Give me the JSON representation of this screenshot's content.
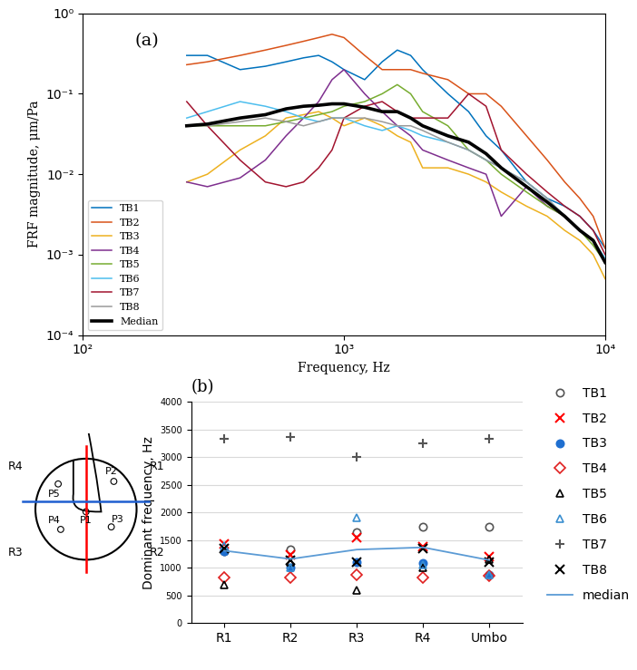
{
  "chart_data": [
    {
      "type": "line",
      "annotations": [
        "(a)"
      ],
      "x_label": "Frequency, Hz",
      "y_label": "FRF magnitude, μm/Pa",
      "log": true,
      "grid": false,
      "legend": "lower left",
      "x": [
        250,
        300,
        400,
        500,
        600,
        700,
        800,
        900,
        1000,
        1200,
        1400,
        1600,
        1800,
        2000,
        2500,
        3000,
        3500,
        4000,
        5000,
        6000,
        7000,
        8000,
        9000,
        10000
      ],
      "xlim": [
        100,
        10000
      ],
      "xticks": [
        {
          "value": 100,
          "label": "10²"
        },
        {
          "value": 1000,
          "label": "10³"
        },
        {
          "value": 10000,
          "label": "10⁴"
        }
      ],
      "ylim": [
        0.0001,
        1
      ],
      "yticks": [
        {
          "value": 0.0001,
          "label": "10⁻⁴"
        },
        {
          "value": 0.001,
          "label": "10⁻³"
        },
        {
          "value": 0.01,
          "label": "10⁻²"
        },
        {
          "value": 0.1,
          "label": "10⁻¹"
        },
        {
          "value": 1,
          "label": "10⁰"
        }
      ],
      "series": [
        {
          "name": "TB1",
          "color": "#0072BD",
          "line_style": "solid",
          "values": [
            0.3,
            0.3,
            0.2,
            0.22,
            0.25,
            0.28,
            0.3,
            0.25,
            0.2,
            0.15,
            0.25,
            0.35,
            0.3,
            0.2,
            0.1,
            0.06,
            0.03,
            0.02,
            0.008,
            0.005,
            0.004,
            0.003,
            0.002,
            0.0012
          ]
        },
        {
          "name": "TB2",
          "color": "#D95319",
          "line_style": "solid",
          "values": [
            0.23,
            0.25,
            0.3,
            0.35,
            0.4,
            0.45,
            0.5,
            0.55,
            0.5,
            0.3,
            0.2,
            0.2,
            0.2,
            0.18,
            0.15,
            0.1,
            0.1,
            0.07,
            0.03,
            0.015,
            0.008,
            0.005,
            0.003,
            0.0012
          ]
        },
        {
          "name": "TB3",
          "color": "#EDB120",
          "line_style": "solid",
          "values": [
            0.008,
            0.01,
            0.02,
            0.03,
            0.05,
            0.055,
            0.06,
            0.05,
            0.04,
            0.05,
            0.04,
            0.03,
            0.025,
            0.012,
            0.012,
            0.01,
            0.008,
            0.006,
            0.004,
            0.003,
            0.002,
            0.0015,
            0.001,
            0.0005
          ]
        },
        {
          "name": "TB4",
          "color": "#7E2F8E",
          "line_style": "solid",
          "values": [
            0.008,
            0.007,
            0.009,
            0.015,
            0.03,
            0.05,
            0.08,
            0.15,
            0.2,
            0.1,
            0.06,
            0.04,
            0.03,
            0.02,
            0.015,
            0.012,
            0.01,
            0.003,
            0.007,
            0.004,
            0.003,
            0.002,
            0.0015,
            0.0008
          ]
        },
        {
          "name": "TB5",
          "color": "#77AC30",
          "line_style": "solid",
          "values": [
            0.04,
            0.04,
            0.04,
            0.04,
            0.045,
            0.05,
            0.055,
            0.06,
            0.07,
            0.08,
            0.1,
            0.13,
            0.1,
            0.06,
            0.04,
            0.02,
            0.015,
            0.01,
            0.006,
            0.004,
            0.003,
            0.002,
            0.0013,
            0.0008
          ]
        },
        {
          "name": "TB6",
          "color": "#4DBEEE",
          "line_style": "solid",
          "values": [
            0.05,
            0.06,
            0.08,
            0.07,
            0.06,
            0.05,
            0.045,
            0.05,
            0.05,
            0.04,
            0.035,
            0.04,
            0.035,
            0.03,
            0.025,
            0.02,
            0.015,
            0.012,
            0.008,
            0.005,
            0.003,
            0.002,
            0.0015,
            0.0009
          ]
        },
        {
          "name": "TB7",
          "color": "#A2142F",
          "line_style": "solid",
          "values": [
            0.08,
            0.04,
            0.015,
            0.008,
            0.007,
            0.008,
            0.012,
            0.02,
            0.05,
            0.07,
            0.08,
            0.06,
            0.05,
            0.05,
            0.05,
            0.1,
            0.07,
            0.02,
            0.01,
            0.006,
            0.004,
            0.003,
            0.002,
            0.001
          ]
        },
        {
          "name": "TB8",
          "color": "#9a9a9a",
          "line_style": "solid",
          "values": [
            0.04,
            0.04,
            0.045,
            0.05,
            0.045,
            0.04,
            0.045,
            0.05,
            0.05,
            0.05,
            0.045,
            0.04,
            0.04,
            0.035,
            0.025,
            0.02,
            0.015,
            0.012,
            0.008,
            0.005,
            0.003,
            0.002,
            0.0015,
            0.0008
          ]
        },
        {
          "name": "Median",
          "color": "#000000",
          "line_style": "bold",
          "values": [
            0.04,
            0.042,
            0.05,
            0.055,
            0.065,
            0.07,
            0.072,
            0.075,
            0.075,
            0.068,
            0.06,
            0.06,
            0.05,
            0.04,
            0.03,
            0.025,
            0.018,
            0.012,
            0.007,
            0.0045,
            0.003,
            0.002,
            0.0015,
            0.0008
          ]
        }
      ]
    },
    {
      "type": "scatter",
      "annotations": [
        "(b)"
      ],
      "y_label": "Dominant frequency, Hz",
      "grid": true,
      "legend": "right",
      "categories": [
        "R1",
        "R2",
        "R3",
        "R4",
        "Umbo"
      ],
      "ylim": [
        0,
        4000
      ],
      "yticks": [
        0,
        500,
        1000,
        1500,
        2000,
        2500,
        3000,
        3500,
        4000
      ],
      "series": [
        {
          "name": "TB1",
          "color": "#555555",
          "marker": "open_circle",
          "values": [
            1300,
            1330,
            1650,
            1750,
            1750
          ]
        },
        {
          "name": "TB2",
          "color": "#ff0000",
          "marker": "x",
          "values": [
            1430,
            1230,
            1550,
            1380,
            1200
          ]
        },
        {
          "name": "TB3",
          "color": "#1f6fd0",
          "marker": "filled_circle",
          "values": [
            1300,
            1000,
            1100,
            1080,
            880
          ]
        },
        {
          "name": "TB4",
          "color": "#e02020",
          "marker": "open_diamond",
          "values": [
            830,
            820,
            880,
            820,
            850
          ]
        },
        {
          "name": "TB5",
          "color": "#000000",
          "marker": "open_triangle",
          "values": [
            700,
            1100,
            600,
            1000,
            1150
          ]
        },
        {
          "name": "TB6",
          "color": "#3a8fd0",
          "marker": "open_triangle",
          "values": [
            1400,
            1000,
            1900,
            1050,
            870
          ]
        },
        {
          "name": "TB7",
          "color": "#555555",
          "marker": "plus",
          "values": [
            3330,
            3360,
            3000,
            3250,
            3340
          ]
        },
        {
          "name": "TB8",
          "color": "#000000",
          "marker": "x",
          "values": [
            1350,
            1130,
            1100,
            1350,
            1100
          ]
        },
        {
          "name": "median",
          "color": "#5b9bd5",
          "type": "line",
          "values": [
            1310,
            1160,
            1330,
            1370,
            1140
          ]
        }
      ]
    }
  ],
  "diagram": {
    "region_labels": [
      "R1",
      "R2",
      "R3",
      "R4"
    ],
    "point_labels": [
      "P1",
      "P2",
      "P3",
      "P4",
      "P5"
    ]
  }
}
